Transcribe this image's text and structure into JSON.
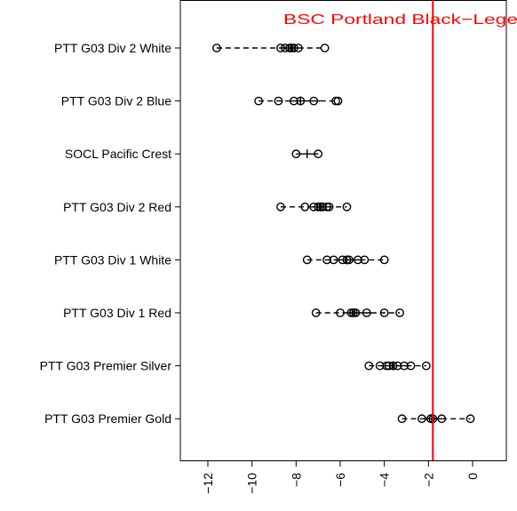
{
  "chart_data": {
    "type": "boxplot",
    "orientation": "horizontal",
    "title": "",
    "xlabel": "",
    "ylabel": "",
    "xlim": [
      -13.2,
      1.5
    ],
    "x_ticks": [
      -12,
      -10,
      -8,
      -6,
      -4,
      -2,
      0
    ],
    "x_tick_labels": [
      "−12",
      "−10",
      "−8",
      "−6",
      "−4",
      "−2",
      "0"
    ],
    "categories": [
      "PTT G03 Div 2 White",
      "PTT G03 Div 2 Blue",
      "SOCL Pacific Crest",
      "PTT G03 Div 2 Red",
      "PTT G03 Div 1 White",
      "PTT G03 Div 1 Red",
      "PTT G03 Premier Silver",
      "PTT G03 Premier Gold"
    ],
    "series": [
      {
        "category": "PTT G03 Div 2 White",
        "values": [
          -11.6,
          -8.7,
          -8.5,
          -8.3,
          -8.2,
          -8.1,
          -7.9,
          -6.7
        ],
        "box": [
          -8.7,
          -8.2,
          -7.9
        ]
      },
      {
        "category": "PTT G03 Div 2 Blue",
        "values": [
          -9.7,
          -8.8,
          -8.1,
          -7.8,
          -7.2,
          -6.2,
          -6.1
        ],
        "box": [
          -8.3,
          -7.8,
          -6.9
        ]
      },
      {
        "category": "SOCL Pacific Crest",
        "values": [
          -8.0,
          -7.0
        ],
        "box": [
          -8.0,
          -7.5,
          -7.0
        ]
      },
      {
        "category": "PTT G03 Div 2 Red",
        "values": [
          -8.7,
          -7.6,
          -7.2,
          -7.0,
          -6.9,
          -6.8,
          -6.6,
          -6.5,
          -5.7
        ],
        "box": [
          -7.4,
          -6.9,
          -6.6
        ]
      },
      {
        "category": "PTT G03 Div 1 White",
        "values": [
          -7.5,
          -6.6,
          -6.3,
          -5.9,
          -5.7,
          -5.6,
          -5.2,
          -4.9,
          -4.0
        ],
        "box": [
          -6.3,
          -5.7,
          -5.1
        ]
      },
      {
        "category": "PTT G03 Div 1 Red",
        "values": [
          -7.1,
          -6.0,
          -5.5,
          -5.4,
          -5.3,
          -4.8,
          -4.0,
          -3.3
        ],
        "box": [
          -5.9,
          -5.4,
          -4.6
        ]
      },
      {
        "category": "PTT G03 Premier Silver",
        "values": [
          -4.7,
          -4.2,
          -3.9,
          -3.8,
          -3.6,
          -3.4,
          -3.1,
          -2.8,
          -2.1
        ],
        "box": [
          -4.0,
          -3.6,
          -3.0
        ]
      },
      {
        "category": "PTT G03 Premier Gold",
        "values": [
          -3.2,
          -2.3,
          -1.9,
          -1.8,
          -1.4,
          -0.1
        ],
        "box": [
          -2.3,
          -1.85,
          -1.4
        ]
      }
    ],
    "reference_line": {
      "x": -1.8,
      "label": "BSC Portland Black−Lege",
      "color": "#ff0000"
    },
    "colors": {
      "points": "#000000",
      "reference": "#ff0000",
      "frame": "#000000"
    }
  }
}
